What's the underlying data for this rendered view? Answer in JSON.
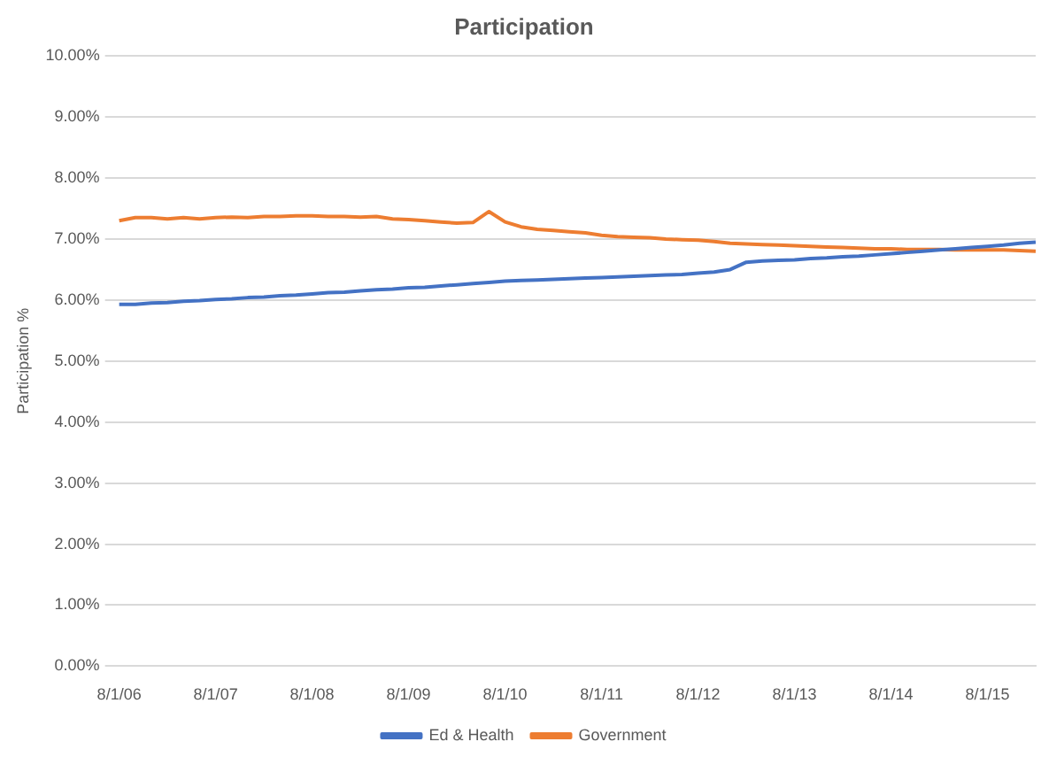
{
  "chart_data": {
    "type": "line",
    "title": "Participation",
    "ylabel": "Participation %",
    "categories": [
      "8/1/06",
      null,
      null,
      null,
      null,
      null,
      "8/1/07",
      null,
      null,
      null,
      null,
      null,
      "8/1/08",
      null,
      null,
      null,
      null,
      null,
      "8/1/09",
      null,
      null,
      null,
      null,
      null,
      "8/1/10",
      null,
      null,
      null,
      null,
      null,
      "8/1/11",
      null,
      null,
      null,
      null,
      null,
      "8/1/12",
      null,
      null,
      null,
      null,
      null,
      "8/1/13",
      null,
      null,
      null,
      null,
      null,
      "8/1/14",
      null,
      null,
      null,
      null,
      null,
      "8/1/15",
      null,
      null,
      null
    ],
    "series": [
      {
        "name": "Ed & Health",
        "color": "#4472c4",
        "values": [
          5.93,
          5.93,
          5.95,
          5.96,
          5.98,
          5.99,
          6.01,
          6.02,
          6.04,
          6.05,
          6.07,
          6.08,
          6.1,
          6.12,
          6.13,
          6.15,
          6.17,
          6.18,
          6.2,
          6.21,
          6.23,
          6.25,
          6.27,
          6.29,
          6.31,
          6.32,
          6.33,
          6.34,
          6.35,
          6.36,
          6.37,
          6.38,
          6.39,
          6.4,
          6.41,
          6.42,
          6.44,
          6.46,
          6.5,
          6.62,
          6.64,
          6.65,
          6.66,
          6.68,
          6.69,
          6.71,
          6.72,
          6.74,
          6.76,
          6.78,
          6.8,
          6.82,
          6.84,
          6.86,
          6.88,
          6.9,
          6.93,
          6.95
        ]
      },
      {
        "name": "Government",
        "color": "#ed7d31",
        "values": [
          7.3,
          7.35,
          7.35,
          7.33,
          7.35,
          7.33,
          7.35,
          7.36,
          7.35,
          7.37,
          7.37,
          7.38,
          7.38,
          7.37,
          7.37,
          7.36,
          7.37,
          7.33,
          7.32,
          7.3,
          7.28,
          7.26,
          7.27,
          7.45,
          7.28,
          7.2,
          7.16,
          7.14,
          7.12,
          7.1,
          7.06,
          7.04,
          7.03,
          7.02,
          7.0,
          6.99,
          6.98,
          6.96,
          6.93,
          6.92,
          6.91,
          6.9,
          6.89,
          6.88,
          6.87,
          6.86,
          6.85,
          6.84,
          6.84,
          6.83,
          6.83,
          6.83,
          6.82,
          6.82,
          6.82,
          6.82,
          6.81,
          6.8
        ]
      }
    ],
    "ylim": [
      0,
      10
    ],
    "yticks": [
      {
        "value": 0,
        "label": "0.00%"
      },
      {
        "value": 1,
        "label": "1.00%"
      },
      {
        "value": 2,
        "label": "2.00%"
      },
      {
        "value": 3,
        "label": "3.00%"
      },
      {
        "value": 4,
        "label": "4.00%"
      },
      {
        "value": 5,
        "label": "5.00%"
      },
      {
        "value": 6,
        "label": "6.00%"
      },
      {
        "value": 7,
        "label": "7.00%"
      },
      {
        "value": 8,
        "label": "8.00%"
      },
      {
        "value": 9,
        "label": "9.00%"
      },
      {
        "value": 10,
        "label": "10.00%"
      }
    ],
    "grid": "y",
    "legend": "bottom",
    "marker": "none",
    "line_style": "solid"
  }
}
